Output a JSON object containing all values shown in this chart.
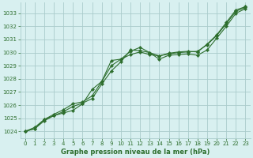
{
  "background_color": "#d8f0f0",
  "grid_color": "#aacccc",
  "line_color": "#2d6e2d",
  "marker_color": "#2d6e2d",
  "xlabel": "Graphe pression niveau de la mer (hPa)",
  "ylim": [
    1023.5,
    1033.8
  ],
  "xlim": [
    -0.5,
    23.5
  ],
  "yticks": [
    1024,
    1025,
    1026,
    1027,
    1028,
    1029,
    1030,
    1031,
    1032,
    1033
  ],
  "xticks": [
    0,
    1,
    2,
    3,
    4,
    5,
    6,
    7,
    8,
    9,
    10,
    11,
    12,
    13,
    14,
    15,
    16,
    17,
    18,
    19,
    20,
    21,
    22,
    23
  ],
  "series": [
    [
      1024.0,
      1024.2,
      1024.8,
      1025.2,
      1025.4,
      1025.6,
      1026.1,
      1027.2,
      1027.8,
      1029.4,
      1029.5,
      1030.1,
      1030.4,
      1030.0,
      1029.5,
      1029.8,
      1029.85,
      1029.9,
      1029.8,
      1030.2,
      1031.1,
      1032.0,
      1033.0,
      1033.35
    ],
    [
      1024.0,
      1024.2,
      1024.9,
      1025.2,
      1025.5,
      1025.9,
      1026.15,
      1026.5,
      1027.6,
      1028.6,
      1029.3,
      1030.2,
      1030.15,
      1030.0,
      1029.75,
      1029.9,
      1030.0,
      1030.05,
      1030.1,
      1030.6,
      1031.3,
      1032.2,
      1033.15,
      1033.45
    ],
    [
      1024.0,
      1024.3,
      1024.9,
      1025.3,
      1025.65,
      1026.1,
      1026.25,
      1026.7,
      1027.8,
      1029.0,
      1029.5,
      1029.85,
      1030.05,
      1029.85,
      1029.75,
      1029.95,
      1030.05,
      1030.1,
      1030.05,
      1030.65,
      1031.35,
      1032.3,
      1033.25,
      1033.5
    ]
  ],
  "title_fontsize": 6,
  "tick_fontsize": 5,
  "xlabel_fontsize": 6
}
